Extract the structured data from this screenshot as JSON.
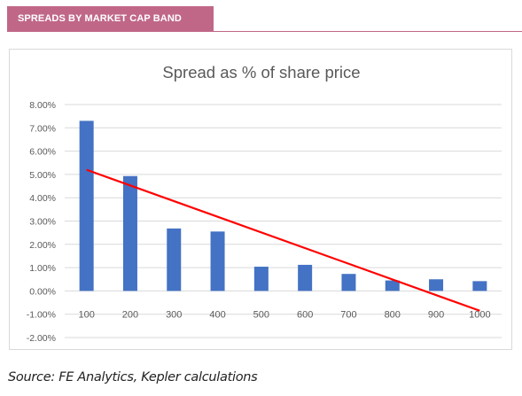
{
  "header": {
    "banner_label": "SPREADS BY MARKET CAP BAND",
    "banner_color": "#c06787"
  },
  "chart_data": {
    "type": "bar",
    "title": "Spread as % of share price",
    "categories": [
      "100",
      "200",
      "300",
      "400",
      "500",
      "600",
      "700",
      "800",
      "900",
      "1000"
    ],
    "values": [
      7.3,
      4.93,
      2.68,
      2.55,
      1.04,
      1.12,
      0.73,
      0.45,
      0.5,
      0.42
    ],
    "ylim": [
      -2,
      8
    ],
    "y_ticks": [
      "8.00%",
      "7.00%",
      "6.00%",
      "5.00%",
      "4.00%",
      "3.00%",
      "2.00%",
      "1.00%",
      "0.00%",
      "-1.00%",
      "-2.00%"
    ],
    "y_unit": "%",
    "grid": true,
    "bar_color": "#4472c4",
    "trendline": {
      "color": "#ff0000",
      "start": 5.2,
      "end": -0.85
    }
  },
  "footer": {
    "source": "Source: FE Analytics, Kepler calculations"
  }
}
